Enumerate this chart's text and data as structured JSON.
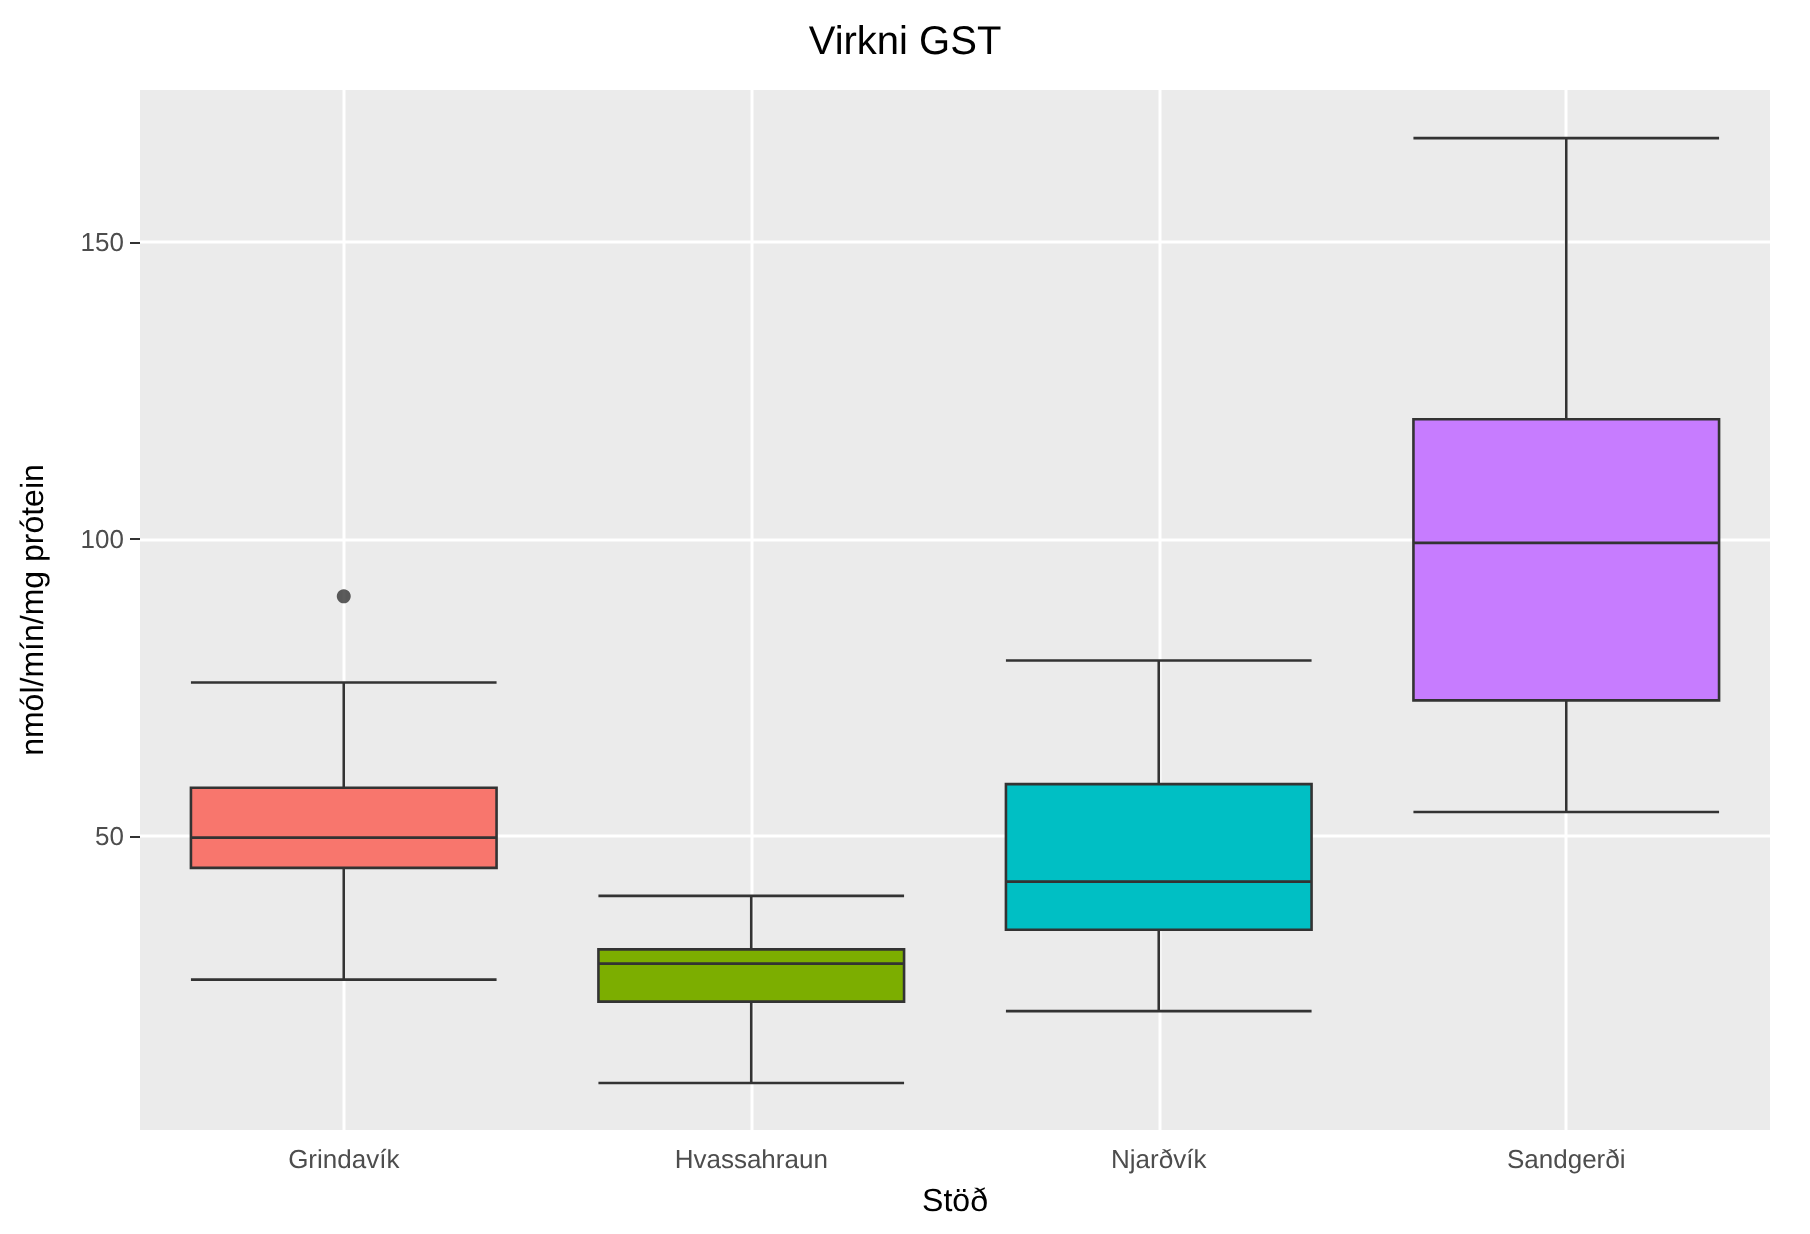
{
  "chart_data": {
    "type": "box",
    "title": "Virkni GST",
    "xlabel": "Stöð",
    "ylabel": "nmól/mín/mg prótein",
    "categories": [
      "Grindavík",
      "Hvassahraun",
      "Njarðvík",
      "Sandgerði"
    ],
    "colors": [
      "#f8766d",
      "#7cae00",
      "#00bfc4",
      "#c77cff"
    ],
    "boxes": [
      {
        "low": 25.8,
        "q1": 44.6,
        "median": 49.7,
        "q3": 58.1,
        "high": 75.8,
        "outliers": [
          90.3
        ]
      },
      {
        "low": 8.4,
        "q1": 22.1,
        "median": 28.5,
        "q3": 30.9,
        "high": 39.9
      },
      {
        "low": 20.5,
        "q1": 34.2,
        "median": 42.3,
        "q3": 58.7,
        "high": 79.5
      },
      {
        "low": 54,
        "q1": 72.8,
        "median": 99.3,
        "q3": 120.1,
        "high": 167.4
      }
    ],
    "ylim": [
      0.5,
      175.5
    ],
    "yticks": [
      50,
      100,
      150
    ],
    "grid": true
  }
}
